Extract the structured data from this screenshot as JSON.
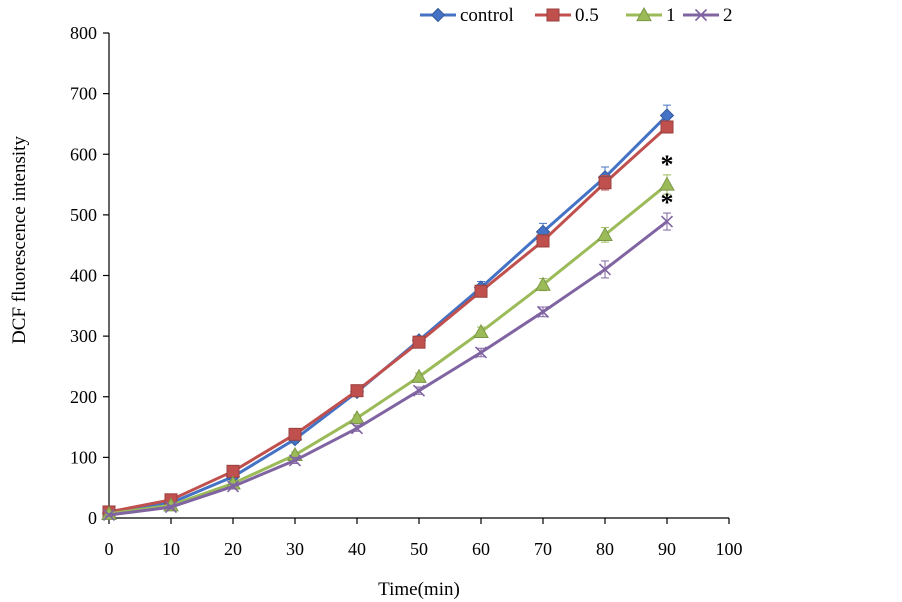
{
  "chart_data": {
    "type": "line",
    "title": "",
    "xlabel": "Time(min)",
    "ylabel": "DCF  fluorescence intensity",
    "x": [
      0,
      10,
      20,
      30,
      40,
      50,
      60,
      70,
      80,
      90
    ],
    "xlim": [
      0,
      100
    ],
    "ylim": [
      0,
      800
    ],
    "xticks": [
      "0",
      "10",
      "20",
      "30",
      "40",
      "50",
      "60",
      "70",
      "80",
      "90",
      "100"
    ],
    "yticks": [
      "0",
      "100",
      "200",
      "300",
      "400",
      "500",
      "600",
      "700",
      "800"
    ],
    "grid": false,
    "legend_position": "top",
    "series": [
      {
        "name": "control",
        "color": "#4472C4",
        "marker": "diamond",
        "values": [
          8,
          25,
          68,
          130,
          208,
          293,
          380,
          472,
          562,
          664
        ],
        "errors": [
          3,
          4,
          5,
          6,
          6,
          7,
          10,
          14,
          17,
          17
        ]
      },
      {
        "name": "0.5",
        "color": "#C0504D",
        "marker": "square",
        "values": [
          10,
          30,
          77,
          138,
          210,
          290,
          374,
          457,
          553,
          645
        ],
        "errors": [
          3,
          4,
          5,
          6,
          6,
          7,
          8,
          10,
          12,
          10
        ]
      },
      {
        "name": "1",
        "color": "#9BBB59",
        "marker": "triangle",
        "values": [
          7,
          21,
          57,
          104,
          165,
          233,
          307,
          385,
          467,
          550
        ],
        "errors": [
          3,
          3,
          4,
          5,
          5,
          6,
          8,
          10,
          12,
          16
        ]
      },
      {
        "name": "2",
        "color": "#8064A2",
        "marker": "cross",
        "values": [
          5,
          18,
          52,
          95,
          148,
          210,
          273,
          340,
          410,
          489
        ],
        "errors": [
          2,
          3,
          4,
          5,
          5,
          6,
          7,
          8,
          14,
          14
        ]
      }
    ],
    "annotations": [
      {
        "text": "*",
        "series": "1",
        "x": 90
      },
      {
        "text": "*",
        "series": "2",
        "x": 90
      }
    ]
  }
}
